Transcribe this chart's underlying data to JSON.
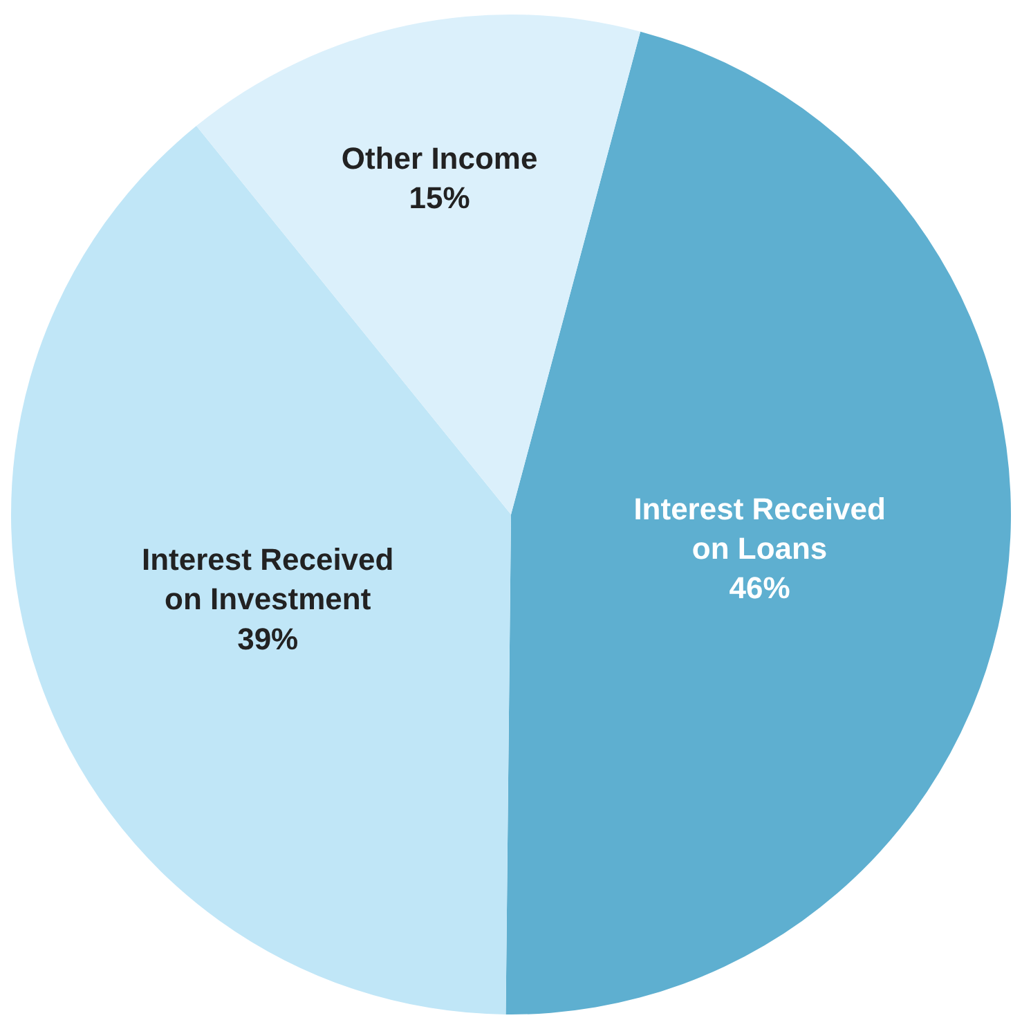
{
  "chart_data": {
    "type": "pie",
    "categories": [
      "Interest Received on Loans",
      "Interest Received on Investment",
      "Other Income"
    ],
    "values": [
      46,
      39,
      15
    ],
    "value_labels": [
      "46%",
      "39%",
      "15%"
    ],
    "colors": [
      "#5eafd0",
      "#c0e6f7",
      "#dbf0fb"
    ],
    "legend": false
  }
}
